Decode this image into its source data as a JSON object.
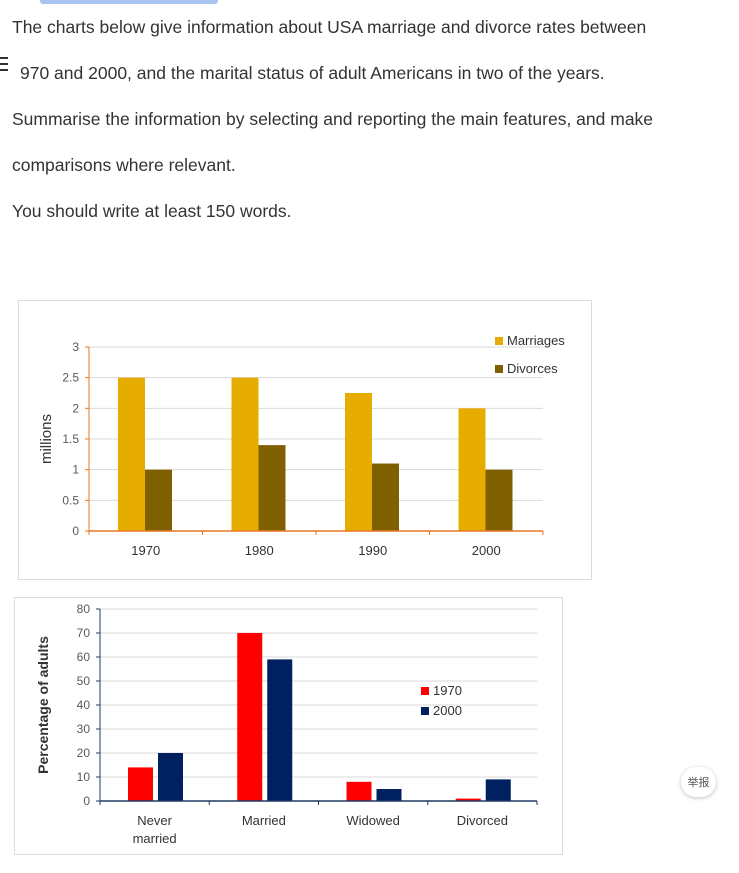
{
  "prompt": {
    "lines": [
      "The charts below give information about USA marriage and divorce rates between",
      "970 and 2000, and the marital status of adult Americans in two of the years.",
      "Summarise the information by selecting and reporting the main features, and make",
      "comparisons where relevant.",
      "You should write at least 150 words."
    ]
  },
  "report_button": "举报",
  "chart_data": [
    {
      "type": "bar",
      "ylabel": "millions",
      "categories": [
        "1970",
        "1980",
        "1990",
        "2000"
      ],
      "series": [
        {
          "name": "Marriages",
          "values": [
            2.5,
            2.5,
            2.25,
            2.0
          ],
          "color": "#e6ac00"
        },
        {
          "name": "Divorces",
          "values": [
            1.0,
            1.4,
            1.1,
            1.0
          ],
          "color": "#7f6000"
        }
      ],
      "yticks": [
        "0",
        "0.5",
        "1",
        "1.5",
        "2",
        "2.5",
        "3"
      ],
      "ylim": [
        0,
        3
      ],
      "grid": true,
      "legend": "top-right",
      "axis_color": "#e87722"
    },
    {
      "type": "bar",
      "ylabel": "Percentage of adults",
      "categories": [
        "Never married",
        "Married",
        "Widowed",
        "Divorced"
      ],
      "series": [
        {
          "name": "1970",
          "values": [
            14,
            70,
            8,
            1
          ],
          "color": "#ff0000"
        },
        {
          "name": "2000",
          "values": [
            20,
            59,
            5,
            9
          ],
          "color": "#002060"
        }
      ],
      "yticks": [
        "0",
        "10",
        "20",
        "30",
        "40",
        "50",
        "60",
        "70",
        "80"
      ],
      "ylim": [
        0,
        80
      ],
      "grid": true,
      "legend": "right",
      "axis_color": "#1f3864"
    }
  ]
}
